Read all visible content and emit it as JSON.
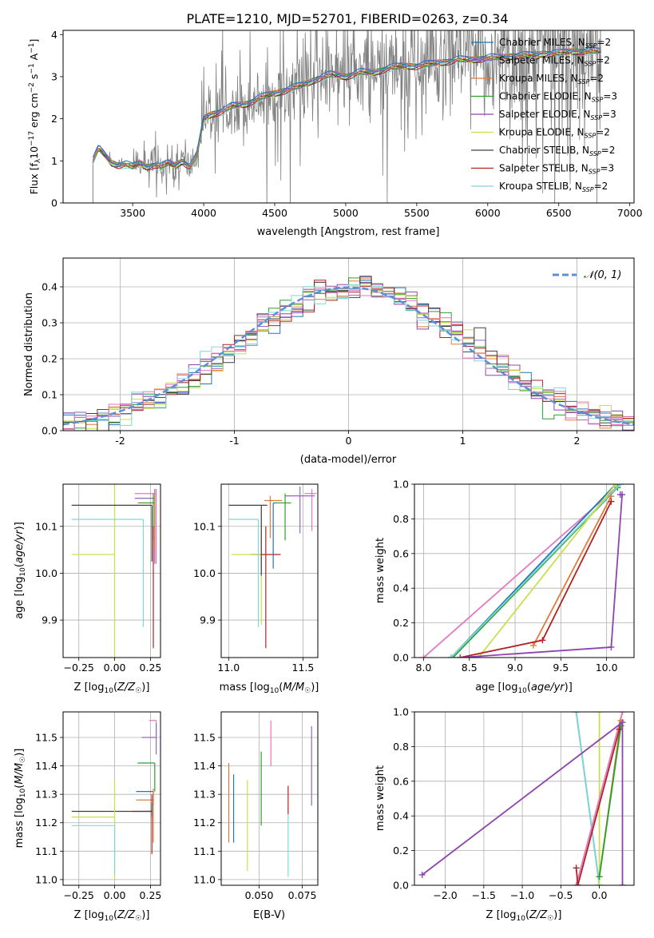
{
  "title": "PLATE=1210, MJD=52701, FIBERID=0263, z=0.34",
  "colors": {
    "chabrier_miles": "#1f77b4",
    "salpeter_miles": "#9467bd",
    "kroupa_miles": "#e07b39",
    "chabrier_elodie": "#2ca02c",
    "salpeter_elodie": "#8e44ad",
    "kroupa_elodie": "#c8e04a",
    "chabrier_stelib": "#404040",
    "salpeter_stelib": "#b22222",
    "kroupa_stelib": "#7fd8d8",
    "pink": "#e377c2",
    "data": "#808080",
    "normal": "#5b8fd6"
  },
  "chart_data": [
    {
      "id": "spectrum",
      "type": "line",
      "xlabel": "wavelength [Angstrom, rest frame]",
      "ylabel": "Flux [f_λ 10^-17 erg cm^-2 s^-1 A^-1]",
      "xlim": [
        3010,
        7030
      ],
      "ylim": [
        0,
        4.1
      ],
      "xticks": [
        3500,
        4000,
        4500,
        5000,
        5500,
        6000,
        6500,
        7000
      ],
      "yticks": [
        0,
        1,
        2,
        3,
        4
      ],
      "grid": false,
      "legend_position": "top-right",
      "legend": [
        {
          "imf": "Chabrier",
          "lib": "MILES",
          "n": "2",
          "color_key": "chabrier_miles"
        },
        {
          "imf": "Salpeter",
          "lib": "MILES",
          "n": "2",
          "color_key": "salpeter_miles"
        },
        {
          "imf": "Kroupa",
          "lib": "MILES",
          "n": "2",
          "color_key": "kroupa_miles"
        },
        {
          "imf": "Chabrier",
          "lib": "ELODIE",
          "n": "3",
          "color_key": "chabrier_elodie"
        },
        {
          "imf": "Salpeter",
          "lib": "ELODIE",
          "n": "3",
          "color_key": "salpeter_elodie"
        },
        {
          "imf": "Kroupa",
          "lib": "ELODIE",
          "n": "2",
          "color_key": "kroupa_elodie"
        },
        {
          "imf": "Chabrier",
          "lib": "STELIB",
          "n": "2",
          "color_key": "chabrier_stelib"
        },
        {
          "imf": "Salpeter",
          "lib": "STELIB",
          "n": "3",
          "color_key": "salpeter_stelib"
        },
        {
          "imf": "Kroupa",
          "lib": "STELIB",
          "n": "2",
          "color_key": "kroupa_stelib"
        }
      ],
      "continuum": [
        [
          3220,
          1.0
        ],
        [
          3260,
          1.3
        ],
        [
          3300,
          1.15
        ],
        [
          3350,
          0.95
        ],
        [
          3400,
          0.9
        ],
        [
          3450,
          0.92
        ],
        [
          3500,
          0.85
        ],
        [
          3550,
          0.95
        ],
        [
          3600,
          0.85
        ],
        [
          3650,
          0.9
        ],
        [
          3700,
          0.85
        ],
        [
          3750,
          0.95
        ],
        [
          3800,
          0.88
        ],
        [
          3850,
          1.0
        ],
        [
          3900,
          0.85
        ],
        [
          3950,
          1.1
        ],
        [
          4000,
          2.0
        ],
        [
          4050,
          2.1
        ],
        [
          4100,
          2.15
        ],
        [
          4150,
          2.2
        ],
        [
          4200,
          2.3
        ],
        [
          4300,
          2.35
        ],
        [
          4400,
          2.5
        ],
        [
          4500,
          2.6
        ],
        [
          4600,
          2.7
        ],
        [
          4700,
          2.8
        ],
        [
          4800,
          2.95
        ],
        [
          4900,
          3.05
        ],
        [
          5000,
          3.0
        ],
        [
          5100,
          3.1
        ],
        [
          5200,
          3.1
        ],
        [
          5300,
          3.2
        ],
        [
          5400,
          3.25
        ],
        [
          5500,
          3.25
        ],
        [
          5600,
          3.3
        ],
        [
          5700,
          3.35
        ],
        [
          5800,
          3.4
        ],
        [
          5900,
          3.4
        ],
        [
          6000,
          3.45
        ],
        [
          6100,
          3.45
        ],
        [
          6200,
          3.5
        ],
        [
          6300,
          3.5
        ],
        [
          6400,
          3.55
        ],
        [
          6500,
          3.55
        ],
        [
          6600,
          3.6
        ],
        [
          6700,
          3.6
        ],
        [
          6800,
          3.6
        ]
      ]
    },
    {
      "id": "residuals",
      "type": "line",
      "xlabel": "(data-model)/error",
      "ylabel": "Normed distribution",
      "xlim": [
        -2.5,
        2.5
      ],
      "ylim": [
        0,
        0.48
      ],
      "xticks": [
        -2,
        -1,
        0,
        1,
        2
      ],
      "yticks": [
        0.0,
        0.1,
        0.2,
        0.3,
        0.4
      ],
      "grid": true,
      "legend_label": "𝒩(0, 1)",
      "legend_position": "top-right"
    },
    {
      "id": "age_vs_z",
      "type": "scatter",
      "xlabel": "Z [log10(Z/Z☉)]",
      "ylabel": "age  [log10(age/yr)]",
      "xlim": [
        -0.36,
        0.32
      ],
      "ylim": [
        9.82,
        10.19
      ],
      "xticks": [
        -0.25,
        0.0,
        0.25
      ],
      "xticklabels": [
        "−0.25",
        "0.00",
        "0.25"
      ],
      "yticks": [
        9.9,
        10.0,
        10.1
      ],
      "grid": true,
      "points": [
        {
          "x": 0.28,
          "y": 10.16,
          "xerr_lo": 0.14,
          "yerr_lo": 0.14,
          "yerr_hi": 0.02,
          "color_key": "salpeter_miles"
        },
        {
          "x": 0.29,
          "y": 10.17,
          "xerr_lo": 0.15,
          "yerr_lo": 0.15,
          "yerr_hi": 0.01,
          "color_key": "pink"
        },
        {
          "x": 0.28,
          "y": 10.15,
          "xerr_lo": 0.12,
          "yerr_lo": 0.1,
          "yerr_hi": 0.02,
          "color_key": "kroupa_miles"
        },
        {
          "x": 0.27,
          "y": 10.15,
          "xerr_lo": 0.1,
          "yerr_lo": 0.08,
          "yerr_hi": 0.02,
          "color_key": "chabrier_elodie"
        },
        {
          "x": 0.27,
          "y": 10.04,
          "xerr_lo": 0.0,
          "yerr_lo": 0.2,
          "yerr_hi": 0.06,
          "color_key": "salpeter_stelib"
        },
        {
          "x": 0.0,
          "y": 10.04,
          "xerr_lo": 0.3,
          "yerr_lo": 0.24,
          "yerr_hi": 0.15,
          "color_key": "kroupa_elodie"
        },
        {
          "x": 0.26,
          "y": 10.145,
          "xerr_lo": 0.56,
          "yerr_lo": 0.12,
          "yerr_hi": 0.0,
          "color_key": "chabrier_stelib"
        },
        {
          "x": 0.2,
          "y": 10.115,
          "xerr_lo": 0.5,
          "yerr_lo": 0.23,
          "yerr_hi": 0.0,
          "color_key": "kroupa_stelib"
        }
      ]
    },
    {
      "id": "age_vs_mass",
      "type": "scatter",
      "xlabel": "mass [log10(M/M☉)]",
      "ylabel": "",
      "xlim": [
        10.95,
        11.6
      ],
      "ylim": [
        9.82,
        10.19
      ],
      "xticks": [
        11.0,
        11.5
      ],
      "xticklabels": [
        "11.0",
        "11.5"
      ],
      "yticks": [
        9.9,
        10.0,
        10.1
      ],
      "grid": true,
      "points": [
        {
          "x": 11.48,
          "y": 10.165,
          "xerr_lo": 0.1,
          "xerr_hi": 0.1,
          "yerr_lo": 0.08,
          "yerr_hi": 0.02,
          "color_key": "salpeter_miles"
        },
        {
          "x": 11.56,
          "y": 10.17,
          "xerr_lo": 0.05,
          "xerr_hi": 0.03,
          "yerr_lo": 0.08,
          "yerr_hi": 0.01,
          "color_key": "pink"
        },
        {
          "x": 11.28,
          "y": 10.155,
          "xerr_lo": 0.04,
          "xerr_hi": 0.08,
          "yerr_lo": 0.08,
          "yerr_hi": 0.01,
          "color_key": "kroupa_miles"
        },
        {
          "x": 11.38,
          "y": 10.15,
          "xerr_lo": 0.06,
          "xerr_hi": 0.04,
          "yerr_lo": 0.08,
          "yerr_hi": 0.02,
          "color_key": "chabrier_elodie"
        },
        {
          "x": 11.25,
          "y": 10.04,
          "xerr_lo": 0.1,
          "xerr_hi": 0.1,
          "yerr_lo": 0.2,
          "yerr_hi": 0.06,
          "color_key": "salpeter_stelib"
        },
        {
          "x": 11.22,
          "y": 10.04,
          "xerr_lo": 0.2,
          "xerr_hi": 0.0,
          "yerr_lo": 0.15,
          "yerr_hi": 0.1,
          "color_key": "kroupa_elodie"
        },
        {
          "x": 11.22,
          "y": 10.145,
          "xerr_lo": 0.22,
          "xerr_hi": 0.04,
          "yerr_lo": 0.15,
          "yerr_hi": 0.0,
          "color_key": "chabrier_stelib"
        },
        {
          "x": 11.2,
          "y": 10.115,
          "xerr_lo": 0.2,
          "xerr_hi": 0.0,
          "yerr_lo": 0.23,
          "yerr_hi": 0.0,
          "color_key": "kroupa_stelib"
        },
        {
          "x": 11.3,
          "y": 10.15,
          "xerr_lo": 0.0,
          "xerr_hi": 0.02,
          "yerr_lo": 0.14,
          "yerr_hi": 0.0,
          "color_key": "chabrier_miles"
        }
      ]
    },
    {
      "id": "weight_vs_age",
      "type": "line",
      "xlabel": "age  [log10(age/yr)]",
      "ylabel": "mass weight",
      "xlim": [
        7.9,
        10.3
      ],
      "ylim": [
        0.0,
        1.0
      ],
      "xticks": [
        8.0,
        8.5,
        9.0,
        9.5,
        10.0
      ],
      "xticklabels": [
        "8.0",
        "8.5",
        "9.0",
        "9.5",
        "10.0"
      ],
      "yticks": [
        0.0,
        0.2,
        0.4,
        0.6,
        0.8,
        1.0
      ],
      "grid": true,
      "series": [
        {
          "color_key": "pink",
          "points": [
            [
              8.0,
              0.0
            ],
            [
              10.15,
              1.0
            ]
          ]
        },
        {
          "color_key": "chabrier_miles",
          "points": [
            [
              8.3,
              0.0
            ],
            [
              10.1,
              1.0
            ]
          ]
        },
        {
          "color_key": "chabrier_elodie",
          "points": [
            [
              8.32,
              0.0
            ],
            [
              10.12,
              0.98
            ]
          ]
        },
        {
          "color_key": "kroupa_stelib",
          "points": [
            [
              8.3,
              0.0
            ],
            [
              10.15,
              1.0
            ]
          ]
        },
        {
          "color_key": "kroupa_elodie",
          "points": [
            [
              8.6,
              0.0
            ],
            [
              10.1,
              1.0
            ]
          ]
        },
        {
          "color_key": "kroupa_miles",
          "points": [
            [
              9.2,
              0.07
            ],
            [
              10.05,
              0.93
            ]
          ]
        },
        {
          "color_key": "salpeter_stelib",
          "points": [
            [
              8.4,
              0.0
            ],
            [
              9.3,
              0.1
            ],
            [
              10.05,
              0.9
            ]
          ]
        },
        {
          "color_key": "salpeter_elodie",
          "points": [
            [
              8.4,
              0.0
            ],
            [
              10.05,
              0.06
            ],
            [
              10.17,
              0.94
            ],
            [
              10.15,
              0.94
            ]
          ]
        }
      ]
    },
    {
      "id": "mass_vs_z",
      "type": "scatter",
      "xlabel": "Z [log10(Z/Z☉)]",
      "ylabel": "mass [log10(M/M☉)]",
      "xlim": [
        -0.36,
        0.32
      ],
      "ylim": [
        10.98,
        11.59
      ],
      "xticks": [
        -0.25,
        0.0,
        0.25
      ],
      "xticklabels": [
        "−0.25",
        "0.00",
        "0.25"
      ],
      "yticks": [
        11.0,
        11.1,
        11.2,
        11.3,
        11.4,
        11.5
      ],
      "grid": true,
      "points": [
        {
          "x": 0.29,
          "y": 11.56,
          "xerr_lo": 0.05,
          "yerr_lo": 0.06,
          "yerr_hi": 0.0,
          "color_key": "pink"
        },
        {
          "x": 0.29,
          "y": 11.5,
          "xerr_lo": 0.1,
          "yerr_lo": 0.06,
          "yerr_hi": 0.05,
          "color_key": "salpeter_miles"
        },
        {
          "x": 0.28,
          "y": 11.41,
          "xerr_lo": 0.12,
          "yerr_lo": 0.1,
          "yerr_hi": 0.0,
          "color_key": "chabrier_elodie"
        },
        {
          "x": 0.27,
          "y": 11.31,
          "xerr_lo": 0.12,
          "yerr_lo": 0.05,
          "yerr_hi": 0.0,
          "color_key": "chabrier_miles"
        },
        {
          "x": 0.27,
          "y": 11.28,
          "xerr_lo": 0.12,
          "yerr_lo": 0.15,
          "yerr_hi": 0.04,
          "color_key": "kroupa_miles"
        },
        {
          "x": 0.26,
          "y": 11.24,
          "xerr_lo": 0.14,
          "yerr_lo": 0.15,
          "yerr_hi": 0.06,
          "color_key": "salpeter_stelib"
        },
        {
          "x": 0.26,
          "y": 11.24,
          "xerr_lo": 0.56,
          "yerr_lo": 0.02,
          "yerr_hi": 0.03,
          "color_key": "chabrier_stelib"
        },
        {
          "x": 0.0,
          "y": 11.22,
          "xerr_lo": 0.3,
          "yerr_lo": 0.22,
          "yerr_hi": 0.13,
          "color_key": "kroupa_elodie"
        },
        {
          "x": 0.0,
          "y": 11.19,
          "xerr_lo": 0.3,
          "yerr_lo": 0.17,
          "yerr_hi": 0.0,
          "color_key": "kroupa_stelib"
        }
      ]
    },
    {
      "id": "mass_vs_ebv",
      "type": "scatter",
      "xlabel": "E(B-V)",
      "ylabel": "",
      "xlim": [
        0.028,
        0.084
      ],
      "ylim": [
        10.98,
        11.59
      ],
      "xticks": [
        0.05,
        0.075
      ],
      "xticklabels": [
        "0.050",
        "0.075"
      ],
      "yticks": [
        11.0,
        11.1,
        11.2,
        11.3,
        11.4,
        11.5
      ],
      "grid": true,
      "points": [
        {
          "x": 0.0324,
          "y": 11.27,
          "yerr_lo": 0.14,
          "yerr_hi": 0.14,
          "color_key": "kroupa_miles"
        },
        {
          "x": 0.0352,
          "y": 11.25,
          "yerr_lo": 0.12,
          "yerr_hi": 0.12,
          "color_key": "chabrier_miles"
        },
        {
          "x": 0.0432,
          "y": 11.19,
          "yerr_lo": 0.16,
          "yerr_hi": 0.16,
          "color_key": "kroupa_elodie"
        },
        {
          "x": 0.0512,
          "y": 11.32,
          "yerr_lo": 0.13,
          "yerr_hi": 0.13,
          "color_key": "chabrier_elodie"
        },
        {
          "x": 0.0568,
          "y": 11.48,
          "yerr_lo": 0.08,
          "yerr_hi": 0.08,
          "color_key": "pink"
        },
        {
          "x": 0.0668,
          "y": 11.28,
          "yerr_lo": 0.05,
          "yerr_hi": 0.05,
          "color_key": "salpeter_stelib"
        },
        {
          "x": 0.0668,
          "y": 11.12,
          "yerr_lo": 0.11,
          "yerr_hi": 0.11,
          "color_key": "kroupa_stelib"
        },
        {
          "x": 0.0804,
          "y": 11.4,
          "yerr_lo": 0.14,
          "yerr_hi": 0.14,
          "color_key": "salpeter_miles"
        }
      ]
    },
    {
      "id": "weight_vs_z",
      "type": "line",
      "xlabel": "Z [log10(Z/Z☉)]",
      "ylabel": "mass weight",
      "xlim": [
        -2.4,
        0.45
      ],
      "ylim": [
        0.0,
        1.0
      ],
      "xticks": [
        -2.0,
        -1.5,
        -1.0,
        -0.5,
        0.0
      ],
      "xticklabels": [
        "−2.0",
        "−1.5",
        "−1.0",
        "−0.5",
        "0.0"
      ],
      "yticks": [
        0.0,
        0.2,
        0.4,
        0.6,
        0.8,
        1.0
      ],
      "grid": true,
      "series": [
        {
          "color_key": "chabrier_miles",
          "points": [
            [
              -0.3,
              1.0
            ],
            [
              0.0,
              0.0
            ]
          ]
        },
        {
          "color_key": "kroupa_stelib",
          "points": [
            [
              -0.3,
              1.0
            ],
            [
              0.0,
              0.0
            ]
          ]
        },
        {
          "color_key": "kroupa_elodie",
          "points": [
            [
              0.0,
              1.0
            ],
            [
              0.0,
              0.0
            ]
          ]
        },
        {
          "color_key": "pink",
          "points": [
            [
              -0.3,
              0.0
            ],
            [
              0.3,
              1.0
            ]
          ]
        },
        {
          "color_key": "kroupa_miles",
          "points": [
            [
              0.0,
              0.05
            ],
            [
              0.28,
              0.95
            ]
          ]
        },
        {
          "color_key": "chabrier_elodie",
          "points": [
            [
              0.0,
              0.05
            ],
            [
              0.28,
              0.92
            ]
          ]
        },
        {
          "color_key": "salpeter_stelib",
          "points": [
            [
              -0.3,
              0.1
            ],
            [
              -0.28,
              0.0
            ],
            [
              0.26,
              0.9
            ]
          ]
        },
        {
          "color_key": "salpeter_elodie",
          "points": [
            [
              -2.3,
              0.06
            ],
            [
              0.3,
              0.94
            ],
            [
              0.3,
              0.0
            ]
          ]
        }
      ]
    }
  ]
}
